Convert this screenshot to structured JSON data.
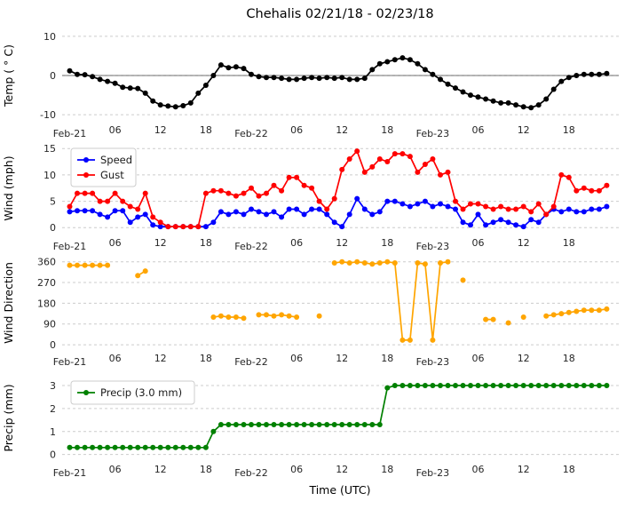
{
  "title": "Chehalis 02/21/18 - 02/23/18",
  "xlabel": "Time (UTC)",
  "x_ticks": {
    "positions": [
      0,
      6,
      12,
      18,
      24,
      30,
      36,
      42,
      48,
      54,
      60,
      66
    ],
    "labels": [
      "Feb-21",
      "06",
      "12",
      "18",
      "Feb-22",
      "06",
      "12",
      "18",
      "Feb-23",
      "06",
      "12",
      "18"
    ]
  },
  "chart_data": [
    {
      "id": "temp",
      "type": "line",
      "ylabel": "Temp ( ° C)",
      "ylim": [
        -11.1,
        11.1
      ],
      "yticks": [
        -10,
        0,
        10
      ],
      "zero_line": 0,
      "grid": "horizontal-dashed",
      "series": [
        {
          "name": "Temp",
          "color": "#000000",
          "values": [
            1.2,
            0.3,
            0.2,
            -0.3,
            -1,
            -1.5,
            -2,
            -3,
            -3.2,
            -3.3,
            -4.5,
            -6.5,
            -7.5,
            -7.8,
            -8,
            -7.7,
            -7,
            -4.5,
            -2.5,
            0,
            2.7,
            2,
            2.2,
            1.8,
            0.3,
            -0.3,
            -0.5,
            -0.5,
            -0.7,
            -1,
            -1,
            -0.7,
            -0.5,
            -0.7,
            -0.5,
            -0.7,
            -0.5,
            -1,
            -1,
            -0.7,
            1.5,
            3,
            3.5,
            4,
            4.5,
            4,
            3,
            1.5,
            0.3,
            -1,
            -2.2,
            -3.2,
            -4.2,
            -5,
            -5.5,
            -6,
            -6.5,
            -7,
            -7,
            -7.5,
            -8,
            -8.2,
            -7.5,
            -6,
            -3.5,
            -1.5,
            -0.5,
            0,
            0.3,
            0.3,
            0.3,
            0.5
          ]
        }
      ]
    },
    {
      "id": "wind",
      "type": "line",
      "ylabel": "Wind (mph)",
      "ylim": [
        -0.8,
        15.7
      ],
      "yticks": [
        0,
        5,
        10,
        15
      ],
      "grid": "horizontal-dashed",
      "legend": true,
      "legend_position": "upper-left",
      "series": [
        {
          "name": "Speed",
          "color": "#0000ff",
          "values": [
            3,
            3.2,
            3.2,
            3.2,
            2.5,
            2,
            3.2,
            3.2,
            1,
            2,
            2.5,
            0.5,
            0.2,
            0.2,
            0.2,
            0.2,
            0.2,
            0.2,
            0.2,
            1,
            3,
            2.5,
            3,
            2.5,
            3.5,
            3,
            2.5,
            3,
            2,
            3.5,
            3.5,
            2.5,
            3.5,
            3.5,
            2.5,
            1,
            0.2,
            2.5,
            5.5,
            3.5,
            2.5,
            3,
            5,
            5,
            4.5,
            4,
            4.5,
            5,
            4,
            4.5,
            4,
            3.5,
            1,
            0.5,
            2.5,
            0.5,
            1,
            1.5,
            1,
            0.5,
            0.2,
            1.5,
            1,
            2.5,
            3.5,
            3,
            3.5,
            3,
            3,
            3.5,
            3.5,
            4
          ]
        },
        {
          "name": "Gust",
          "color": "#ff0000",
          "values": [
            4,
            6.5,
            6.5,
            6.5,
            5,
            5,
            6.5,
            5,
            4,
            3.5,
            6.5,
            2,
            1,
            0.2,
            0.2,
            0.2,
            0.2,
            0.2,
            6.5,
            7,
            7,
            6.5,
            6,
            6.5,
            7.5,
            6,
            6.5,
            8,
            7,
            9.5,
            9.5,
            8,
            7.5,
            5,
            3.5,
            5.5,
            11,
            13,
            14.5,
            10.5,
            11.5,
            13,
            12.5,
            14,
            14,
            13.5,
            10.5,
            12,
            13,
            10,
            10.5,
            5,
            3.5,
            4.5,
            4.5,
            4,
            3.5,
            4,
            3.5,
            3.5,
            4,
            3,
            4.5,
            2.5,
            4,
            10,
            9.5,
            7,
            7.5,
            7,
            7,
            8
          ]
        }
      ]
    },
    {
      "id": "wind_direction",
      "type": "line",
      "ylabel": "Wind Direction",
      "ylim": [
        -15,
        378
      ],
      "yticks": [
        0,
        90,
        180,
        270,
        360
      ],
      "grid": "horizontal-dashed",
      "series": [
        {
          "name": "Wind Direction",
          "color": "#ffa500",
          "values": [
            345,
            345,
            345,
            345,
            345,
            345,
            null,
            null,
            null,
            300,
            320,
            null,
            null,
            null,
            null,
            null,
            null,
            null,
            null,
            120,
            125,
            120,
            120,
            115,
            null,
            130,
            130,
            125,
            130,
            125,
            120,
            null,
            null,
            125,
            null,
            355,
            360,
            355,
            360,
            355,
            350,
            355,
            360,
            355,
            20,
            20,
            355,
            350,
            20,
            355,
            360,
            null,
            280,
            null,
            null,
            110,
            110,
            null,
            95,
            null,
            120,
            null,
            null,
            125,
            130,
            135,
            140,
            145,
            150,
            150,
            150,
            155
          ]
        }
      ]
    },
    {
      "id": "precip",
      "type": "line",
      "ylabel": "Precip (mm)",
      "ylim": [
        -0.17,
        3.35
      ],
      "yticks": [
        0,
        1,
        2,
        3
      ],
      "grid": "horizontal-dashed",
      "legend": true,
      "legend_position": "upper-left",
      "series": [
        {
          "name": "Precip (3.0 mm)",
          "color": "#008000",
          "values": [
            0.3,
            0.3,
            0.3,
            0.3,
            0.3,
            0.3,
            0.3,
            0.3,
            0.3,
            0.3,
            0.3,
            0.3,
            0.3,
            0.3,
            0.3,
            0.3,
            0.3,
            0.3,
            0.3,
            1.0,
            1.3,
            1.3,
            1.3,
            1.3,
            1.3,
            1.3,
            1.3,
            1.3,
            1.3,
            1.3,
            1.3,
            1.3,
            1.3,
            1.3,
            1.3,
            1.3,
            1.3,
            1.3,
            1.3,
            1.3,
            1.3,
            1.3,
            2.9,
            3.0,
            3.0,
            3.0,
            3.0,
            3.0,
            3.0,
            3.0,
            3.0,
            3.0,
            3.0,
            3.0,
            3.0,
            3.0,
            3.0,
            3.0,
            3.0,
            3.0,
            3.0,
            3.0,
            3.0,
            3.0,
            3.0,
            3.0,
            3.0,
            3.0,
            3.0,
            3.0,
            3.0,
            3.0
          ]
        }
      ]
    }
  ]
}
